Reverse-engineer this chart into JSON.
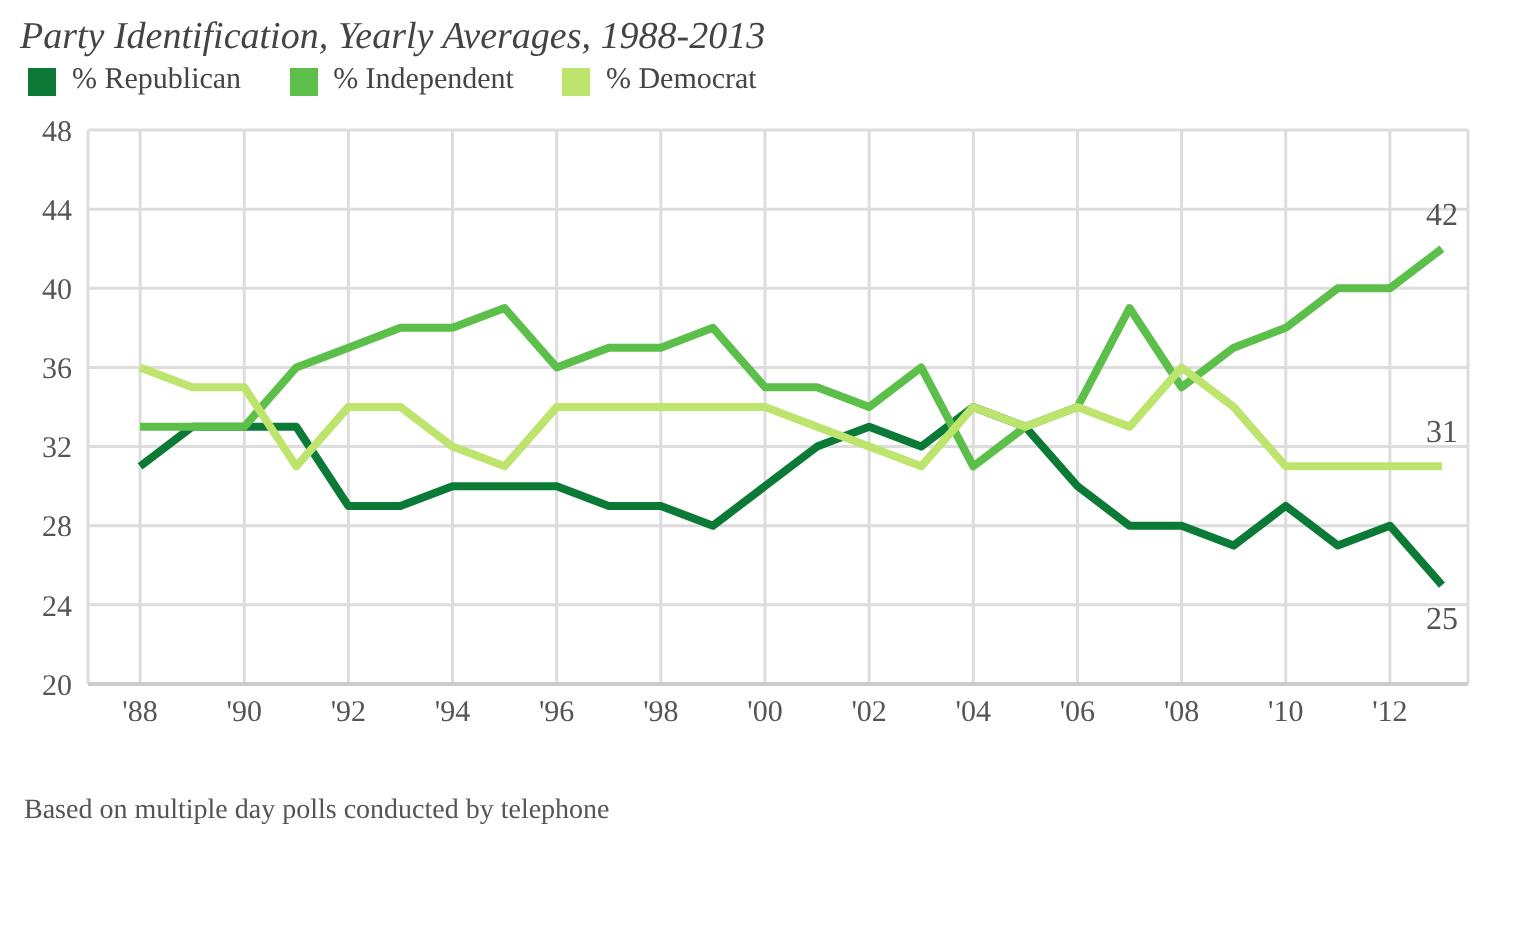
{
  "chart_data": {
    "type": "line",
    "title": "Party Identification, Yearly Averages, 1988-2013",
    "x": [
      1988,
      1989,
      1990,
      1991,
      1992,
      1993,
      1994,
      1995,
      1996,
      1997,
      1998,
      1999,
      2000,
      2001,
      2002,
      2003,
      2004,
      2005,
      2006,
      2007,
      2008,
      2009,
      2010,
      2011,
      2012,
      2013
    ],
    "series": [
      {
        "name": "% Republican",
        "color": "#0b7a36",
        "values": [
          31,
          33,
          33,
          33,
          29,
          29,
          30,
          30,
          30,
          29,
          29,
          28,
          30,
          32,
          33,
          32,
          34,
          33,
          30,
          28,
          28,
          27,
          29,
          27,
          28,
          25
        ],
        "value_labels": [
          null,
          null,
          null,
          null,
          null,
          null,
          null,
          null,
          null,
          null,
          null,
          null,
          null,
          null,
          null,
          null,
          null,
          null,
          null,
          null,
          null,
          null,
          null,
          null,
          null,
          "25"
        ]
      },
      {
        "name": "% Independent",
        "color": "#5cbf4a",
        "values": [
          33,
          33,
          33,
          36,
          37,
          38,
          38,
          39,
          36,
          37,
          37,
          38,
          35,
          35,
          34,
          36,
          31,
          33,
          34,
          39,
          35,
          37,
          38,
          40,
          40,
          42
        ],
        "value_labels": [
          null,
          null,
          null,
          null,
          null,
          null,
          null,
          null,
          null,
          null,
          null,
          null,
          null,
          null,
          null,
          null,
          null,
          null,
          null,
          null,
          null,
          null,
          null,
          null,
          null,
          "42"
        ]
      },
      {
        "name": "% Democrat",
        "color": "#bde46c",
        "values": [
          36,
          35,
          35,
          31,
          34,
          34,
          32,
          31,
          34,
          34,
          34,
          34,
          34,
          33,
          32,
          31,
          34,
          33,
          34,
          33,
          36,
          34,
          31,
          31,
          31,
          31
        ],
        "value_labels": [
          null,
          null,
          null,
          null,
          null,
          null,
          null,
          null,
          null,
          null,
          null,
          null,
          null,
          null,
          null,
          null,
          null,
          null,
          null,
          null,
          null,
          null,
          null,
          null,
          null,
          "31"
        ]
      }
    ],
    "xlim": [
      1987,
      2013.5
    ],
    "xticks": [
      {
        "value": 1988,
        "label": "'88"
      },
      {
        "value": 1990,
        "label": "'90"
      },
      {
        "value": 1992,
        "label": "'92"
      },
      {
        "value": 1994,
        "label": "'94"
      },
      {
        "value": 1996,
        "label": "'96"
      },
      {
        "value": 1998,
        "label": "'98"
      },
      {
        "value": 2000,
        "label": "'00"
      },
      {
        "value": 2002,
        "label": "'02"
      },
      {
        "value": 2004,
        "label": "'04"
      },
      {
        "value": 2006,
        "label": "'06"
      },
      {
        "value": 2008,
        "label": "'08"
      },
      {
        "value": 2010,
        "label": "'10"
      },
      {
        "value": 2012,
        "label": "'12"
      }
    ],
    "ylim": [
      20,
      48
    ],
    "yticks": [
      20,
      24,
      28,
      32,
      36,
      40,
      44,
      48
    ],
    "grid": true,
    "legend": "top left",
    "marker": "none",
    "line_style": "solid",
    "annotations": [
      "Based on multiple day polls conducted by telephone"
    ]
  }
}
